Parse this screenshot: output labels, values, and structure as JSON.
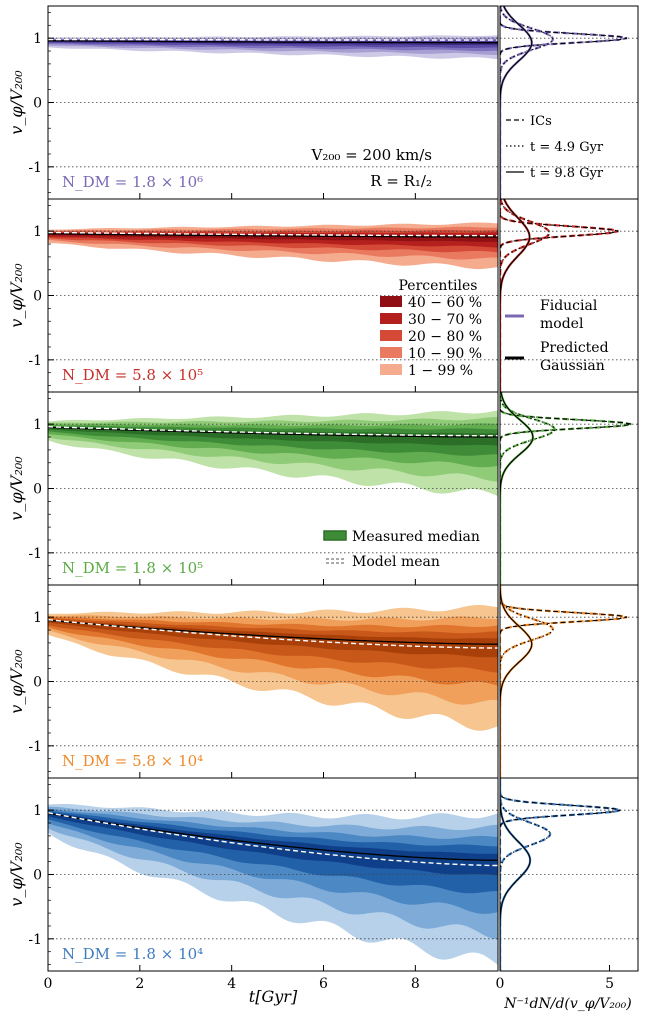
{
  "chart_data": {
    "type": "area",
    "xlabel": "t[Gyr]",
    "hist_xlabel": "N⁻¹dN/d(v_φ/V₂₀₀)",
    "ylabel": "v_φ/V₂₀₀",
    "xlim": [
      0,
      9.8
    ],
    "ylim": [
      -1.5,
      1.5
    ],
    "hist_xlim": [
      0,
      6.3
    ],
    "xticks": [
      "0",
      "2",
      "4",
      "6",
      "8"
    ],
    "yticks": [
      "-1",
      "0",
      "1"
    ],
    "hist_xticks": [
      "0",
      "5"
    ],
    "annotations": {
      "v200": "V₂₀₀ = 200 km/s",
      "radius": "R = R₁/₂"
    },
    "time_legend": [
      "ICs",
      "t = 4.9 Gyr",
      "t = 9.8 Gyr"
    ],
    "percentile_legend": {
      "title": "Percentiles",
      "items": [
        "40 − 60 %",
        "30 − 70 %",
        "20 − 80 %",
        "10 − 90 %",
        "1 − 99 %"
      ]
    },
    "model_legend": [
      "Fiducial model",
      "Predicted Gaussian"
    ],
    "median_legend": [
      "Measured median",
      "Model mean"
    ],
    "panels": [
      {
        "label": "N_DM = 1.8 × 10⁶",
        "color": "#7b68b5",
        "shades": [
          "#3f2a86",
          "#5a4aa6",
          "#7f71bd",
          "#a79fd1",
          "#ccc8e5"
        ],
        "time": [
          0,
          9.8
        ],
        "median": [
          0.96,
          0.93
        ],
        "model_mean": [
          0.98,
          0.97
        ],
        "band_halfwidth_1_99": [
          0.1,
          0.25
        ],
        "hist_peak_density": 5.8,
        "hist_mode": 1.0
      },
      {
        "label": "N_DM = 5.8 × 10⁵",
        "color": "#c8302a",
        "shades": [
          "#8f0f12",
          "#b3201d",
          "#d44a36",
          "#ea7a5f",
          "#f5ab8e"
        ],
        "time": [
          0,
          9.8
        ],
        "median": [
          0.96,
          0.91
        ],
        "model_mean": [
          0.98,
          0.93
        ],
        "band_halfwidth_1_99": [
          0.14,
          0.48
        ],
        "hist_peak_density": 5.4,
        "hist_mode": 1.0
      },
      {
        "label": "N_DM = 1.8 × 10⁵",
        "color": "#5aab44",
        "shades": [
          "#2b6e27",
          "#3f8c38",
          "#62ad4f",
          "#90cb77",
          "#bfe2a8"
        ],
        "time": [
          0,
          9.8
        ],
        "median": [
          0.95,
          0.8
        ],
        "model_mean": [
          0.96,
          0.82
        ],
        "band_halfwidth_1_99": [
          0.2,
          0.9
        ],
        "hist_peak_density": 6.0,
        "hist_mode": 1.0
      },
      {
        "label": "N_DM = 5.8 × 10⁴",
        "color": "#ef8a2a",
        "shades": [
          "#a9400a",
          "#c8581a",
          "#e0762e",
          "#f1a05b",
          "#f7c58f"
        ],
        "time": [
          0,
          9.8
        ],
        "median": [
          0.95,
          0.58
        ],
        "model_mean": [
          0.96,
          0.52
        ],
        "band_halfwidth_1_99": [
          0.22,
          1.3
        ],
        "hist_peak_density": 5.8,
        "hist_mode": 1.0
      },
      {
        "label": "N_DM = 1.8 × 10⁴",
        "color": "#3e7cc0",
        "shades": [
          "#0f3f88",
          "#2261a8",
          "#4b88c4",
          "#7eabd8",
          "#b7d1ea"
        ],
        "time": [
          0,
          9.8
        ],
        "median": [
          0.95,
          0.22
        ],
        "model_mean": [
          0.96,
          0.14
        ],
        "band_halfwidth_1_99": [
          0.3,
          1.6
        ],
        "hist_peak_density": 5.5,
        "hist_mode": 1.0
      }
    ]
  }
}
